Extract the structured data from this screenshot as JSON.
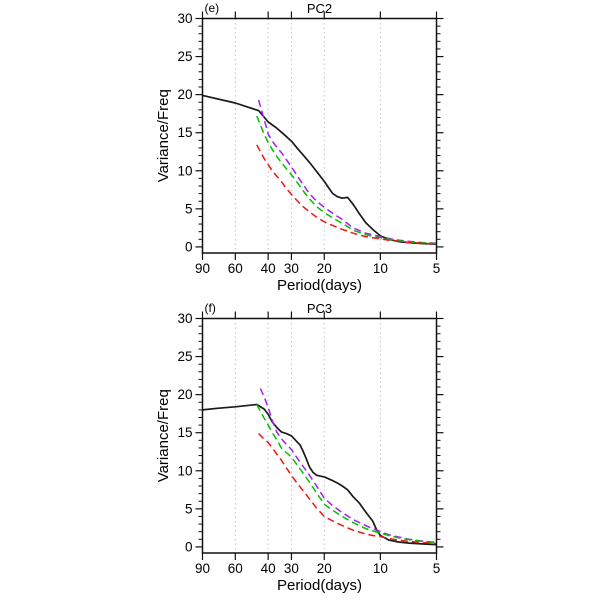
{
  "figure": {
    "background": "#ffffff",
    "text_color": "#000000",
    "frame_color": "#111111",
    "gridline_color": "#c4c4c4"
  },
  "chart_data": [
    {
      "type": "line",
      "panel_label": "(e)",
      "title": "PC2",
      "xlabel": "Period(days)",
      "ylabel": "Variance/Freq",
      "x_scale": "log-reversed",
      "x_range": [
        90,
        5
      ],
      "y_range": [
        0,
        30
      ],
      "x_ticks": [
        90,
        60,
        40,
        30,
        20,
        10,
        5
      ],
      "y_ticks": [
        0,
        5,
        10,
        15,
        20,
        25,
        30
      ],
      "grid_x": [
        60,
        40,
        30,
        20,
        10
      ],
      "legend": "none",
      "series": [
        {
          "name": "black-solid",
          "color": "#1a1a1a",
          "line_style": "solid",
          "x": [
            90,
            60,
            45,
            40,
            36,
            33,
            30,
            28,
            26,
            24,
            22,
            20,
            19,
            18,
            17,
            16,
            15,
            14,
            13,
            12,
            11,
            10,
            9,
            8,
            7,
            6,
            5
          ],
          "y": [
            19.9,
            18.9,
            17.9,
            16.4,
            15.6,
            14.8,
            13.9,
            13.0,
            12.1,
            11.1,
            9.9,
            8.6,
            7.8,
            7.0,
            6.6,
            6.4,
            6.5,
            5.6,
            4.4,
            3.2,
            2.3,
            1.45,
            1.0,
            0.7,
            0.55,
            0.45,
            0.35
          ]
        },
        {
          "name": "violet-dashed",
          "color": "#A020F0",
          "line_style": "dashed",
          "x": [
            45,
            43,
            41,
            40,
            38,
            36,
            34,
            32,
            30,
            28,
            26,
            24,
            22,
            20,
            18,
            16,
            14,
            12,
            11,
            10,
            9,
            8,
            7,
            6,
            5
          ],
          "y": [
            19.3,
            17.6,
            15.8,
            14.8,
            13.9,
            13.1,
            12.4,
            11.5,
            10.5,
            9.4,
            8.2,
            7.0,
            6.0,
            5.2,
            4.4,
            3.6,
            2.5,
            1.8,
            1.6,
            1.35,
            1.1,
            0.9,
            0.72,
            0.58,
            0.48
          ]
        },
        {
          "name": "green-dashed",
          "color": "#00C000",
          "line_style": "dashed",
          "x": [
            46,
            44,
            42,
            40,
            38,
            36,
            34,
            32,
            30,
            28,
            26,
            24,
            22,
            20,
            18,
            16,
            14,
            12,
            11,
            10,
            9,
            8,
            7,
            6,
            5
          ],
          "y": [
            17.2,
            16.0,
            14.8,
            13.7,
            12.8,
            11.9,
            11.1,
            10.3,
            9.5,
            8.5,
            7.4,
            6.3,
            5.3,
            4.5,
            3.8,
            3.1,
            2.2,
            1.6,
            1.4,
            1.2,
            1.0,
            0.82,
            0.66,
            0.54,
            0.44
          ]
        },
        {
          "name": "red-dashed",
          "color": "#F01515",
          "line_style": "dashed",
          "x": [
            46,
            44,
            42,
            40,
            38,
            36,
            34,
            32,
            30,
            28,
            26,
            24,
            22,
            20,
            18,
            16,
            14,
            12,
            11,
            10,
            9,
            8,
            7,
            6,
            5
          ],
          "y": [
            13.4,
            12.5,
            11.6,
            10.8,
            10.0,
            9.3,
            8.6,
            7.7,
            6.9,
            6.1,
            5.3,
            4.6,
            3.9,
            3.3,
            2.8,
            2.3,
            1.8,
            1.35,
            1.2,
            1.05,
            0.88,
            0.72,
            0.58,
            0.47,
            0.38
          ]
        }
      ]
    },
    {
      "type": "line",
      "panel_label": "(f)",
      "title": "PC3",
      "xlabel": "Period(days)",
      "ylabel": "Variance/Freq",
      "x_scale": "log-reversed",
      "x_range": [
        90,
        5
      ],
      "y_range": [
        0,
        30
      ],
      "x_ticks": [
        90,
        60,
        40,
        30,
        20,
        10,
        5
      ],
      "y_ticks": [
        0,
        5,
        10,
        15,
        20,
        25,
        30
      ],
      "grid_x": [
        60,
        40,
        30,
        20,
        10
      ],
      "legend": "none",
      "series": [
        {
          "name": "black-solid",
          "color": "#1a1a1a",
          "line_style": "solid",
          "x": [
            90,
            75,
            60,
            46,
            42,
            40,
            38,
            36,
            34,
            32,
            30,
            28,
            27,
            26,
            25,
            24,
            23,
            22,
            20,
            18,
            17,
            16,
            15,
            14,
            13,
            12,
            11,
            10.5,
            10,
            9,
            8,
            7,
            6,
            5
          ],
          "y": [
            18.0,
            18.2,
            18.4,
            18.7,
            18.1,
            17.4,
            16.4,
            15.7,
            15.1,
            14.9,
            14.6,
            13.8,
            13.4,
            12.6,
            11.6,
            10.5,
            9.8,
            9.4,
            9.2,
            8.7,
            8.4,
            8.0,
            7.5,
            6.6,
            5.8,
            4.6,
            3.4,
            2.3,
            1.5,
            0.9,
            0.65,
            0.5,
            0.4,
            0.3
          ]
        },
        {
          "name": "violet-dashed",
          "color": "#A020F0",
          "line_style": "dashed",
          "x": [
            44,
            42,
            40,
            38,
            36,
            34,
            32,
            30,
            28,
            26,
            24,
            22,
            20,
            18,
            16,
            14,
            12,
            11,
            10,
            9,
            8,
            7,
            6,
            5
          ],
          "y": [
            20.8,
            19.7,
            18.3,
            16.6,
            15.1,
            14.2,
            13.5,
            12.8,
            11.7,
            10.6,
            9.4,
            8.0,
            6.4,
            5.4,
            4.5,
            3.6,
            2.8,
            2.4,
            2.0,
            1.6,
            1.3,
            1.0,
            0.78,
            0.58
          ]
        },
        {
          "name": "green-dashed",
          "color": "#00C000",
          "line_style": "dashed",
          "x": [
            46,
            44,
            42,
            40,
            38,
            36,
            34,
            32,
            30,
            28,
            26,
            24,
            22,
            20,
            18,
            16,
            14,
            12,
            11,
            10,
            9,
            8,
            7,
            6,
            5
          ],
          "y": [
            18.7,
            17.8,
            16.9,
            16.0,
            15.0,
            14.1,
            13.0,
            12.4,
            11.8,
            10.8,
            9.7,
            8.5,
            7.1,
            5.6,
            4.8,
            4.0,
            3.2,
            2.4,
            2.1,
            1.8,
            1.5,
            1.2,
            0.95,
            0.72,
            0.52
          ]
        },
        {
          "name": "red-dashed",
          "color": "#F01515",
          "line_style": "dashed",
          "x": [
            45,
            43,
            41,
            40,
            38,
            36,
            34,
            32,
            30,
            28,
            26,
            24,
            22,
            20,
            18,
            16,
            14,
            12,
            11,
            10,
            9,
            8,
            7,
            6,
            5
          ],
          "y": [
            14.9,
            14.4,
            13.9,
            13.7,
            13.0,
            12.2,
            11.4,
            10.4,
            9.4,
            8.4,
            7.4,
            6.3,
            5.1,
            4.0,
            3.4,
            2.8,
            2.2,
            1.7,
            1.5,
            1.35,
            1.1,
            0.9,
            0.73,
            0.58,
            0.45
          ]
        }
      ]
    }
  ]
}
